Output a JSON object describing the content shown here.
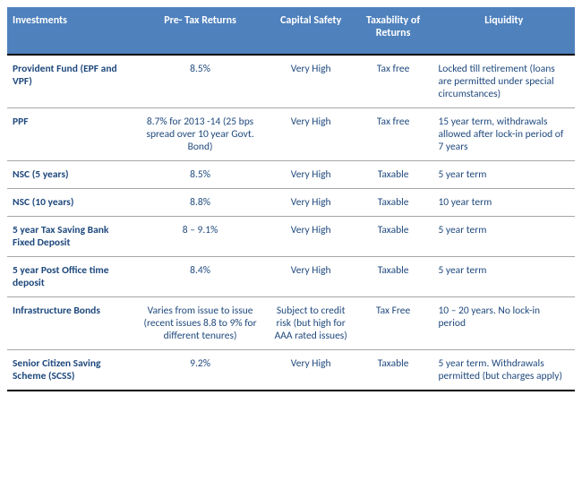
{
  "table": {
    "header_bg": "#4f81bd",
    "header_fg": "#ffffff",
    "body_fg": "#1f497d",
    "row_border": "#a6a6a6",
    "outer_border": "#000000",
    "columns": [
      {
        "label": "Investments",
        "align": "left"
      },
      {
        "label": "Pre- Tax Returns",
        "align": "center"
      },
      {
        "label": "Capital Safety",
        "align": "center"
      },
      {
        "label": "Taxability of Returns",
        "align": "center"
      },
      {
        "label": "Liquidity",
        "align": "center"
      }
    ],
    "rows": [
      {
        "investment": "Provident Fund (EPF and VPF)",
        "returns": "8.5%",
        "safety": "Very High",
        "tax": "Tax free",
        "liquidity": "Locked till retirement (loans are permitted under special circumstances)"
      },
      {
        "investment": "PPF",
        "returns": "8.7% for 2013 -14 (25 bps spread over 10 year Govt. Bond)",
        "safety": "Very High",
        "tax": "Tax free",
        "liquidity": "15 year term, withdrawals allowed after lock-in period of 7 years"
      },
      {
        "investment": "NSC (5 years)",
        "returns": "8.5%",
        "safety": "Very High",
        "tax": "Taxable",
        "liquidity": "5 year term"
      },
      {
        "investment": "NSC (10 years)",
        "returns": "8.8%",
        "safety": "Very High",
        "tax": "Taxable",
        "liquidity": "10 year term"
      },
      {
        "investment": "5 year Tax Saving Bank Fixed Deposit",
        "returns": "8 – 9.1%",
        "safety": "Very High",
        "tax": "Taxable",
        "liquidity": "5 year term"
      },
      {
        "investment": "5 year Post Office time deposit",
        "returns": "8.4%",
        "safety": "Very High",
        "tax": "Taxable",
        "liquidity": "5 year term"
      },
      {
        "investment": "Infrastructure Bonds",
        "returns": "Varies from issue to issue (recent issues 8.8 to 9% for different tenures)",
        "safety": "Subject to credit risk (but high for AAA rated issues)",
        "tax": "Tax Free",
        "liquidity": "10 – 20 years. No lock-in period"
      },
      {
        "investment": "Senior Citizen Saving Scheme (SCSS)",
        "returns": "9.2%",
        "safety": "Very High",
        "tax": "Taxable",
        "liquidity": "5 year term. Withdrawals permitted (but charges apply)"
      }
    ]
  }
}
